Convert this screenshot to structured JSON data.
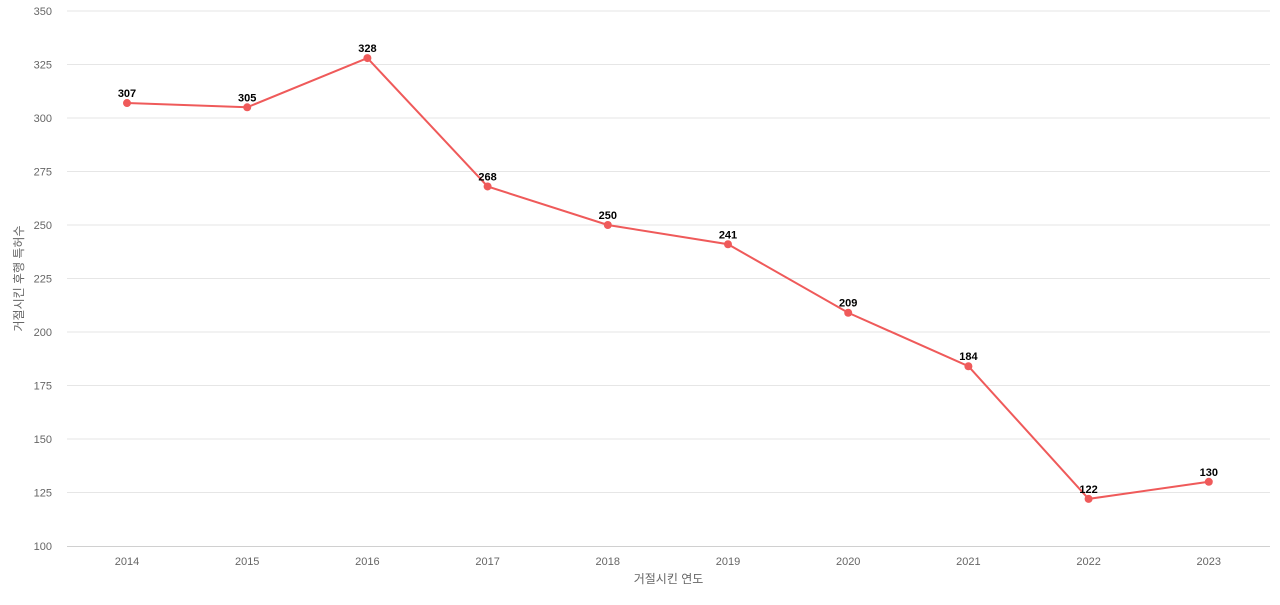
{
  "chart_data": {
    "type": "line",
    "title": "",
    "xlabel": "거절시킨 연도",
    "ylabel": "거절시킨 후행 특허수",
    "categories": [
      "2014",
      "2015",
      "2016",
      "2017",
      "2018",
      "2019",
      "2020",
      "2021",
      "2022",
      "2023"
    ],
    "series": [
      {
        "values": [
          307,
          305,
          328,
          268,
          250,
          241,
          209,
          184,
          122,
          130
        ],
        "color": "#ef5a5a"
      }
    ],
    "ylim": [
      100,
      350
    ],
    "yticks": [
      100,
      125,
      150,
      175,
      200,
      225,
      250,
      275,
      300,
      325,
      350
    ],
    "grid": true,
    "data_labels": true,
    "legend": "none"
  }
}
